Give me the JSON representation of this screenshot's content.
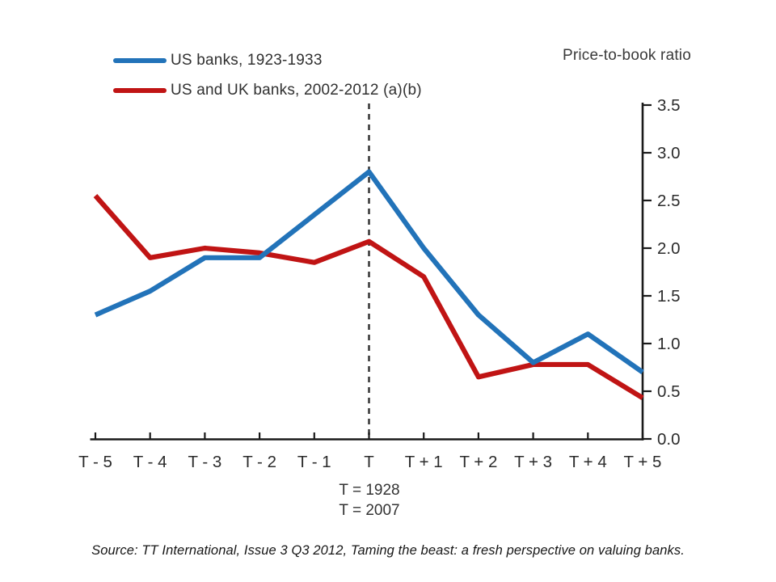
{
  "page": {
    "source_note": "Source: TT International, Issue 3 Q3 2012, Taming the beast: a fresh perspective on valuing banks."
  },
  "chart_data": {
    "type": "line",
    "title": "Price-to-book ratio",
    "xlabel": "",
    "ylabel": "Price-to-book ratio",
    "x_labels": [
      "T - 5",
      "T - 4",
      "T - 3",
      "T - 2",
      "T - 1",
      "T",
      "T + 1",
      "T + 2",
      "T + 3",
      "T + 4",
      "T + 5"
    ],
    "y_ticks": [
      0.0,
      0.5,
      1.0,
      1.5,
      2.0,
      2.5,
      3.0,
      3.5
    ],
    "y_tick_labels": [
      "0.0",
      "0.5",
      "1.0",
      "1.5",
      "2.0",
      "2.5",
      "3.0",
      "3.5"
    ],
    "ylim": [
      0,
      3.5
    ],
    "grid": false,
    "legend_position": "top-left",
    "y_axis_side": "right",
    "series": [
      {
        "name": "US banks, 1923-1933",
        "color": "#2273b9",
        "values": [
          1.3,
          1.55,
          1.9,
          1.9,
          2.35,
          2.8,
          2.0,
          1.3,
          0.8,
          1.1,
          0.7
        ]
      },
      {
        "name": "US and UK banks, 2002-2012 (a)(b)",
        "color": "#c01414",
        "values": [
          2.55,
          1.9,
          2.0,
          1.95,
          1.85,
          2.07,
          1.7,
          0.65,
          0.78,
          0.78,
          0.43
        ]
      }
    ],
    "annotations": {
      "dashed_line_x_label": "T",
      "t_note": [
        "T = 1928",
        "T = 2007"
      ]
    }
  }
}
